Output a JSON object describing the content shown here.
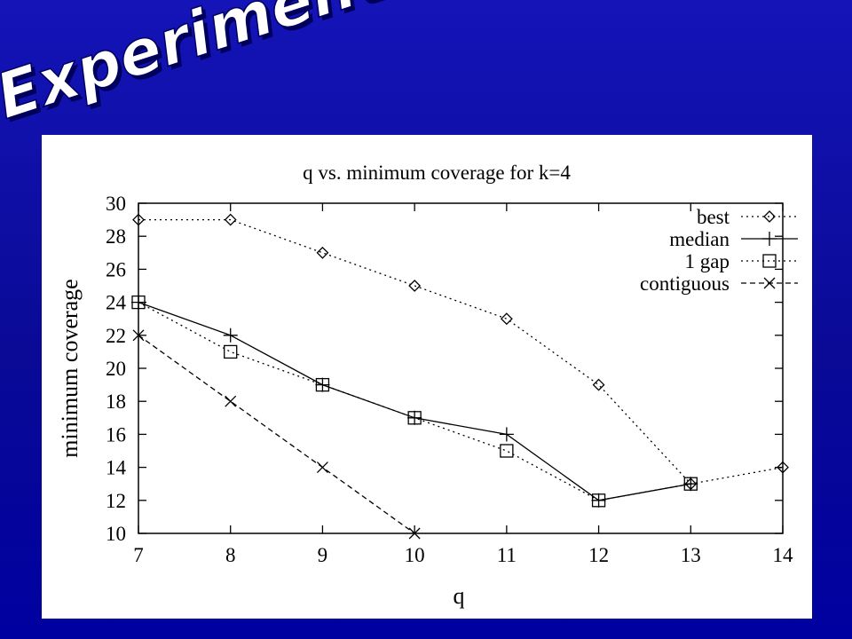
{
  "slide": {
    "title": "Experiments",
    "background_color": "#0a0a96",
    "title_color": "#ffffff"
  },
  "chart_data": {
    "type": "line",
    "title": "q vs. minimum coverage for k=4",
    "xlabel": "q",
    "ylabel": "minimum coverage",
    "xlim": [
      7,
      14
    ],
    "ylim": [
      10,
      30
    ],
    "x_ticks": [
      7,
      8,
      9,
      10,
      11,
      12,
      13,
      14
    ],
    "y_ticks": [
      10,
      12,
      14,
      16,
      18,
      20,
      22,
      24,
      26,
      28,
      30
    ],
    "grid": false,
    "legend_position": "top-right",
    "series": [
      {
        "name": "best",
        "marker": "diamond",
        "line_style": "dotted",
        "x": [
          7,
          8,
          9,
          10,
          11,
          12,
          13,
          14
        ],
        "y": [
          29,
          29,
          27,
          25,
          23,
          19,
          13,
          14
        ]
      },
      {
        "name": "median",
        "marker": "plus",
        "line_style": "solid",
        "x": [
          7,
          8,
          9,
          10,
          11,
          12,
          13
        ],
        "y": [
          24,
          22,
          19,
          17,
          16,
          12,
          13
        ]
      },
      {
        "name": "1 gap",
        "marker": "square",
        "line_style": "dotted",
        "x": [
          7,
          8,
          9,
          10,
          11,
          12,
          13
        ],
        "y": [
          24,
          21,
          19,
          17,
          15,
          12,
          13
        ]
      },
      {
        "name": "contiguous",
        "marker": "cross",
        "line_style": "dashed",
        "x": [
          7,
          8,
          9,
          10
        ],
        "y": [
          22,
          18,
          14,
          10
        ]
      }
    ]
  }
}
